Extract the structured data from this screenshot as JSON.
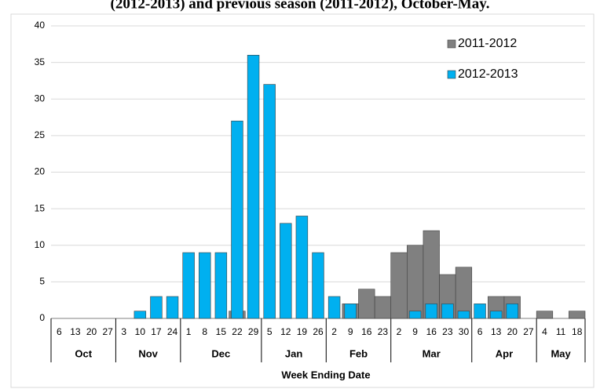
{
  "chart_data": {
    "type": "bar",
    "title": "(2012-2013) and previous season (2011-2012), October-May.",
    "x_label": "Week Ending Date",
    "groups": [
      {
        "label": "Oct",
        "categories": [
          "6",
          "13",
          "20",
          "27"
        ]
      },
      {
        "label": "Nov",
        "categories": [
          "3",
          "10",
          "17",
          "24"
        ]
      },
      {
        "label": "Dec",
        "categories": [
          "1",
          "8",
          "15",
          "22",
          "29"
        ]
      },
      {
        "label": "Jan",
        "categories": [
          "5",
          "12",
          "19",
          "26"
        ]
      },
      {
        "label": "Feb",
        "categories": [
          "2",
          "9",
          "16",
          "23"
        ]
      },
      {
        "label": "Mar",
        "categories": [
          "2",
          "9",
          "16",
          "23",
          "30"
        ]
      },
      {
        "label": "Apr",
        "categories": [
          "6",
          "13",
          "20",
          "27"
        ]
      },
      {
        "label": "May",
        "categories": [
          "4",
          "11",
          "18"
        ]
      }
    ],
    "series": [
      {
        "name": "2011-2012",
        "color": "#808080",
        "values": [
          0,
          0,
          0,
          0,
          0,
          0,
          0,
          0,
          0,
          0,
          0,
          1,
          0,
          0,
          0,
          0,
          0,
          0,
          2,
          4,
          3,
          9,
          10,
          12,
          6,
          7,
          0,
          3,
          3,
          0,
          1,
          0,
          1
        ]
      },
      {
        "name": "2012-2013",
        "color": "#00b0f0",
        "values": [
          0,
          0,
          0,
          0,
          0,
          1,
          3,
          3,
          9,
          9,
          9,
          27,
          36,
          32,
          13,
          14,
          9,
          3,
          2,
          0,
          0,
          0,
          1,
          2,
          2,
          1,
          2,
          1,
          2,
          0,
          0,
          0,
          0
        ]
      }
    ],
    "ylim": [
      0,
      40
    ],
    "yticks": [
      0,
      5,
      10,
      15,
      20,
      25,
      30,
      35,
      40
    ],
    "grid": true
  }
}
